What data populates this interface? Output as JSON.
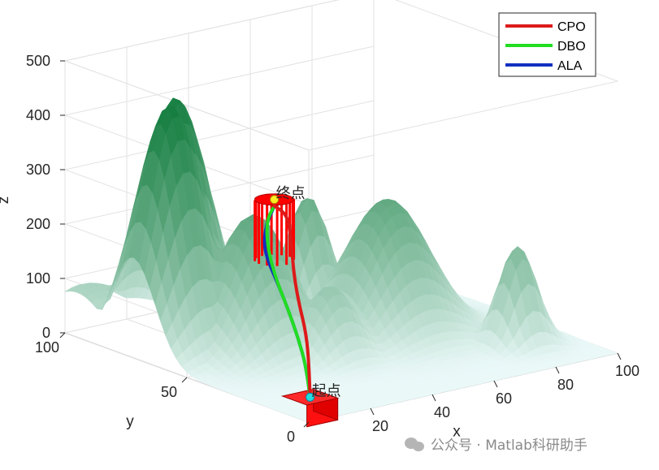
{
  "chart_data": {
    "type": "surface3d",
    "title": "",
    "xlabel": "x",
    "ylabel": "y",
    "zlabel": "z",
    "xlim": [
      0,
      100
    ],
    "ylim": [
      0,
      100
    ],
    "zlim": [
      0,
      500
    ],
    "xticks": [
      "20",
      "40",
      "60",
      "80",
      "100"
    ],
    "yticks": [
      "0",
      "50",
      "100"
    ],
    "zticks": [
      "0",
      "100",
      "200",
      "300",
      "400",
      "500"
    ],
    "grid": true,
    "legend_position": "top-right",
    "surface_colors": {
      "low": "#eaf8f8",
      "high": "#0f7a3a"
    },
    "peaks": [
      {
        "x": 12,
        "y": 72,
        "height": 450,
        "spread": 9
      },
      {
        "x": 20,
        "y": 80,
        "height": 440,
        "spread": 9
      },
      {
        "x": 28,
        "y": 58,
        "height": 250,
        "spread": 10
      },
      {
        "x": 65,
        "y": 50,
        "height": 245,
        "spread": 11
      },
      {
        "x": 55,
        "y": 70,
        "height": 230,
        "spread": 6
      },
      {
        "x": 85,
        "y": 22,
        "height": 180,
        "spread": 5
      },
      {
        "x": 40,
        "y": 42,
        "height": 130,
        "spread": 7
      },
      {
        "x": 5,
        "y": 95,
        "height": 90,
        "spread": 12
      }
    ],
    "start": {
      "x": 2,
      "y": 2,
      "z": 40
    },
    "goal": {
      "x": 52,
      "y": 80,
      "z": 200
    },
    "start_label": "起点",
    "goal_label": "终点",
    "obstacle_color": "#ff0000",
    "series": [
      {
        "name": "CPO",
        "color": "#dd1a1a",
        "points": [
          [
            2,
            2,
            40
          ],
          [
            8,
            10,
            75
          ],
          [
            15,
            20,
            110
          ],
          [
            22,
            32,
            140
          ],
          [
            30,
            44,
            158
          ],
          [
            38,
            55,
            175
          ],
          [
            45,
            65,
            200
          ],
          [
            49,
            72,
            205
          ],
          [
            52,
            80,
            200
          ]
        ]
      },
      {
        "name": "DBO",
        "color": "#22dd22",
        "points": [
          [
            2,
            2,
            40
          ],
          [
            8,
            11,
            70
          ],
          [
            14,
            22,
            100
          ],
          [
            20,
            34,
            128
          ],
          [
            26,
            46,
            150
          ],
          [
            33,
            58,
            170
          ],
          [
            40,
            68,
            185
          ],
          [
            46,
            75,
            195
          ],
          [
            52,
            80,
            200
          ]
        ]
      },
      {
        "name": "ALA",
        "color": "#1030c0",
        "points": [
          [
            2,
            2,
            40
          ],
          [
            8,
            11,
            70
          ],
          [
            14,
            22,
            100
          ],
          [
            20,
            34,
            128
          ],
          [
            26,
            46,
            150
          ],
          [
            31,
            56,
            165
          ],
          [
            36,
            64,
            175
          ],
          [
            43,
            72,
            190
          ],
          [
            52,
            80,
            200
          ]
        ]
      }
    ]
  },
  "watermark": {
    "text": "公众号 · Matlab科研助手",
    "icon": "wechat-icon"
  }
}
